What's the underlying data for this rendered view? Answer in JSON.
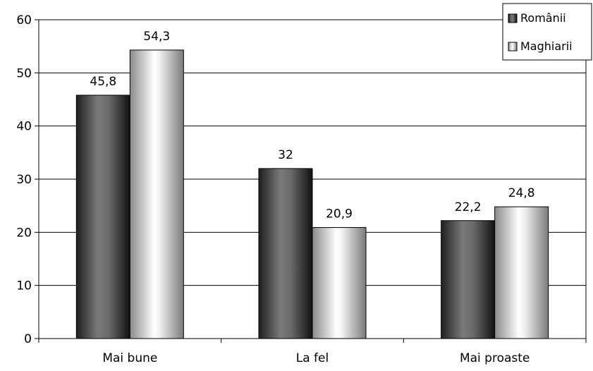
{
  "chart_data": {
    "type": "bar",
    "categories": [
      "Mai bune",
      "La fel",
      "Mai proaste"
    ],
    "series": [
      {
        "name": "Românii",
        "values": [
          45.8,
          32,
          22.2
        ],
        "labels": [
          "45,8",
          "32",
          "22,2"
        ]
      },
      {
        "name": "Maghiarii",
        "values": [
          54.3,
          20.9,
          24.8
        ],
        "labels": [
          "54,3",
          "20,9",
          "24,8"
        ]
      }
    ],
    "ylim": [
      0,
      60
    ],
    "yticks": [
      0,
      10,
      20,
      30,
      40,
      50,
      60
    ],
    "grid": true,
    "legend": "top-right",
    "colors": {
      "series_dark": "#3a3a3a",
      "series_light": "#e8e8e8",
      "grid": "#000000"
    }
  }
}
